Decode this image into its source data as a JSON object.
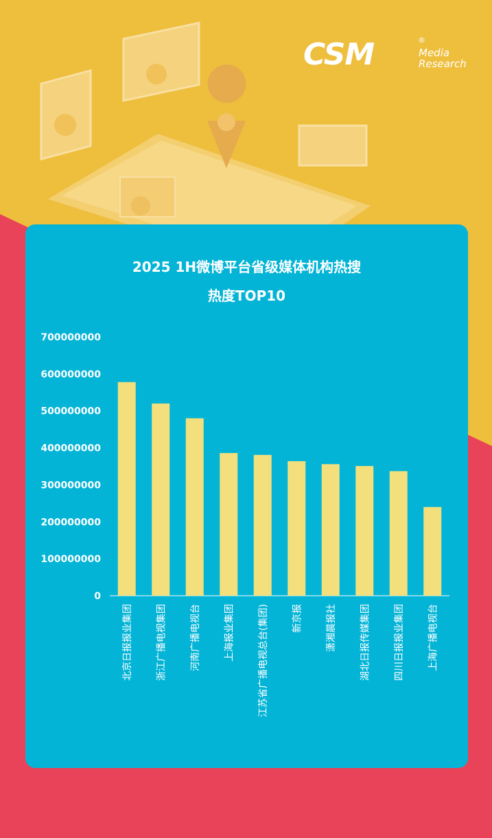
{
  "brand": {
    "logo_text": "CSM",
    "logo_sub1": "Media",
    "logo_sub2": "Research",
    "reg_mark": "®"
  },
  "colors": {
    "yellow_bg": "#eebe3d",
    "red_bg": "#e94359",
    "panel": "#03b4d7",
    "bar": "#f3e07d",
    "text": "#ffffff"
  },
  "chart_data": {
    "type": "bar",
    "title_line1": "2025 1H微博平台省级媒体机构热搜",
    "title_line2": "热度TOP10",
    "categories": [
      "北京日报报业集团",
      "浙江广播电视集团",
      "河南广播电视台",
      "上海报业集团",
      "江苏省广播电视总台(集团)",
      "新京报",
      "潇湘晨报社",
      "湖北日报传媒集团",
      "四川日报报业集团",
      "上海广播电视台"
    ],
    "values": [
      578000000,
      520000000,
      480000000,
      386000000,
      381000000,
      364000000,
      356000000,
      351000000,
      337000000,
      240000000
    ],
    "ylim": [
      0,
      700000000
    ],
    "yticks": [
      "0",
      "100000000",
      "200000000",
      "300000000",
      "400000000",
      "500000000",
      "600000000",
      "700000000"
    ],
    "grid": false,
    "legend": "none"
  }
}
